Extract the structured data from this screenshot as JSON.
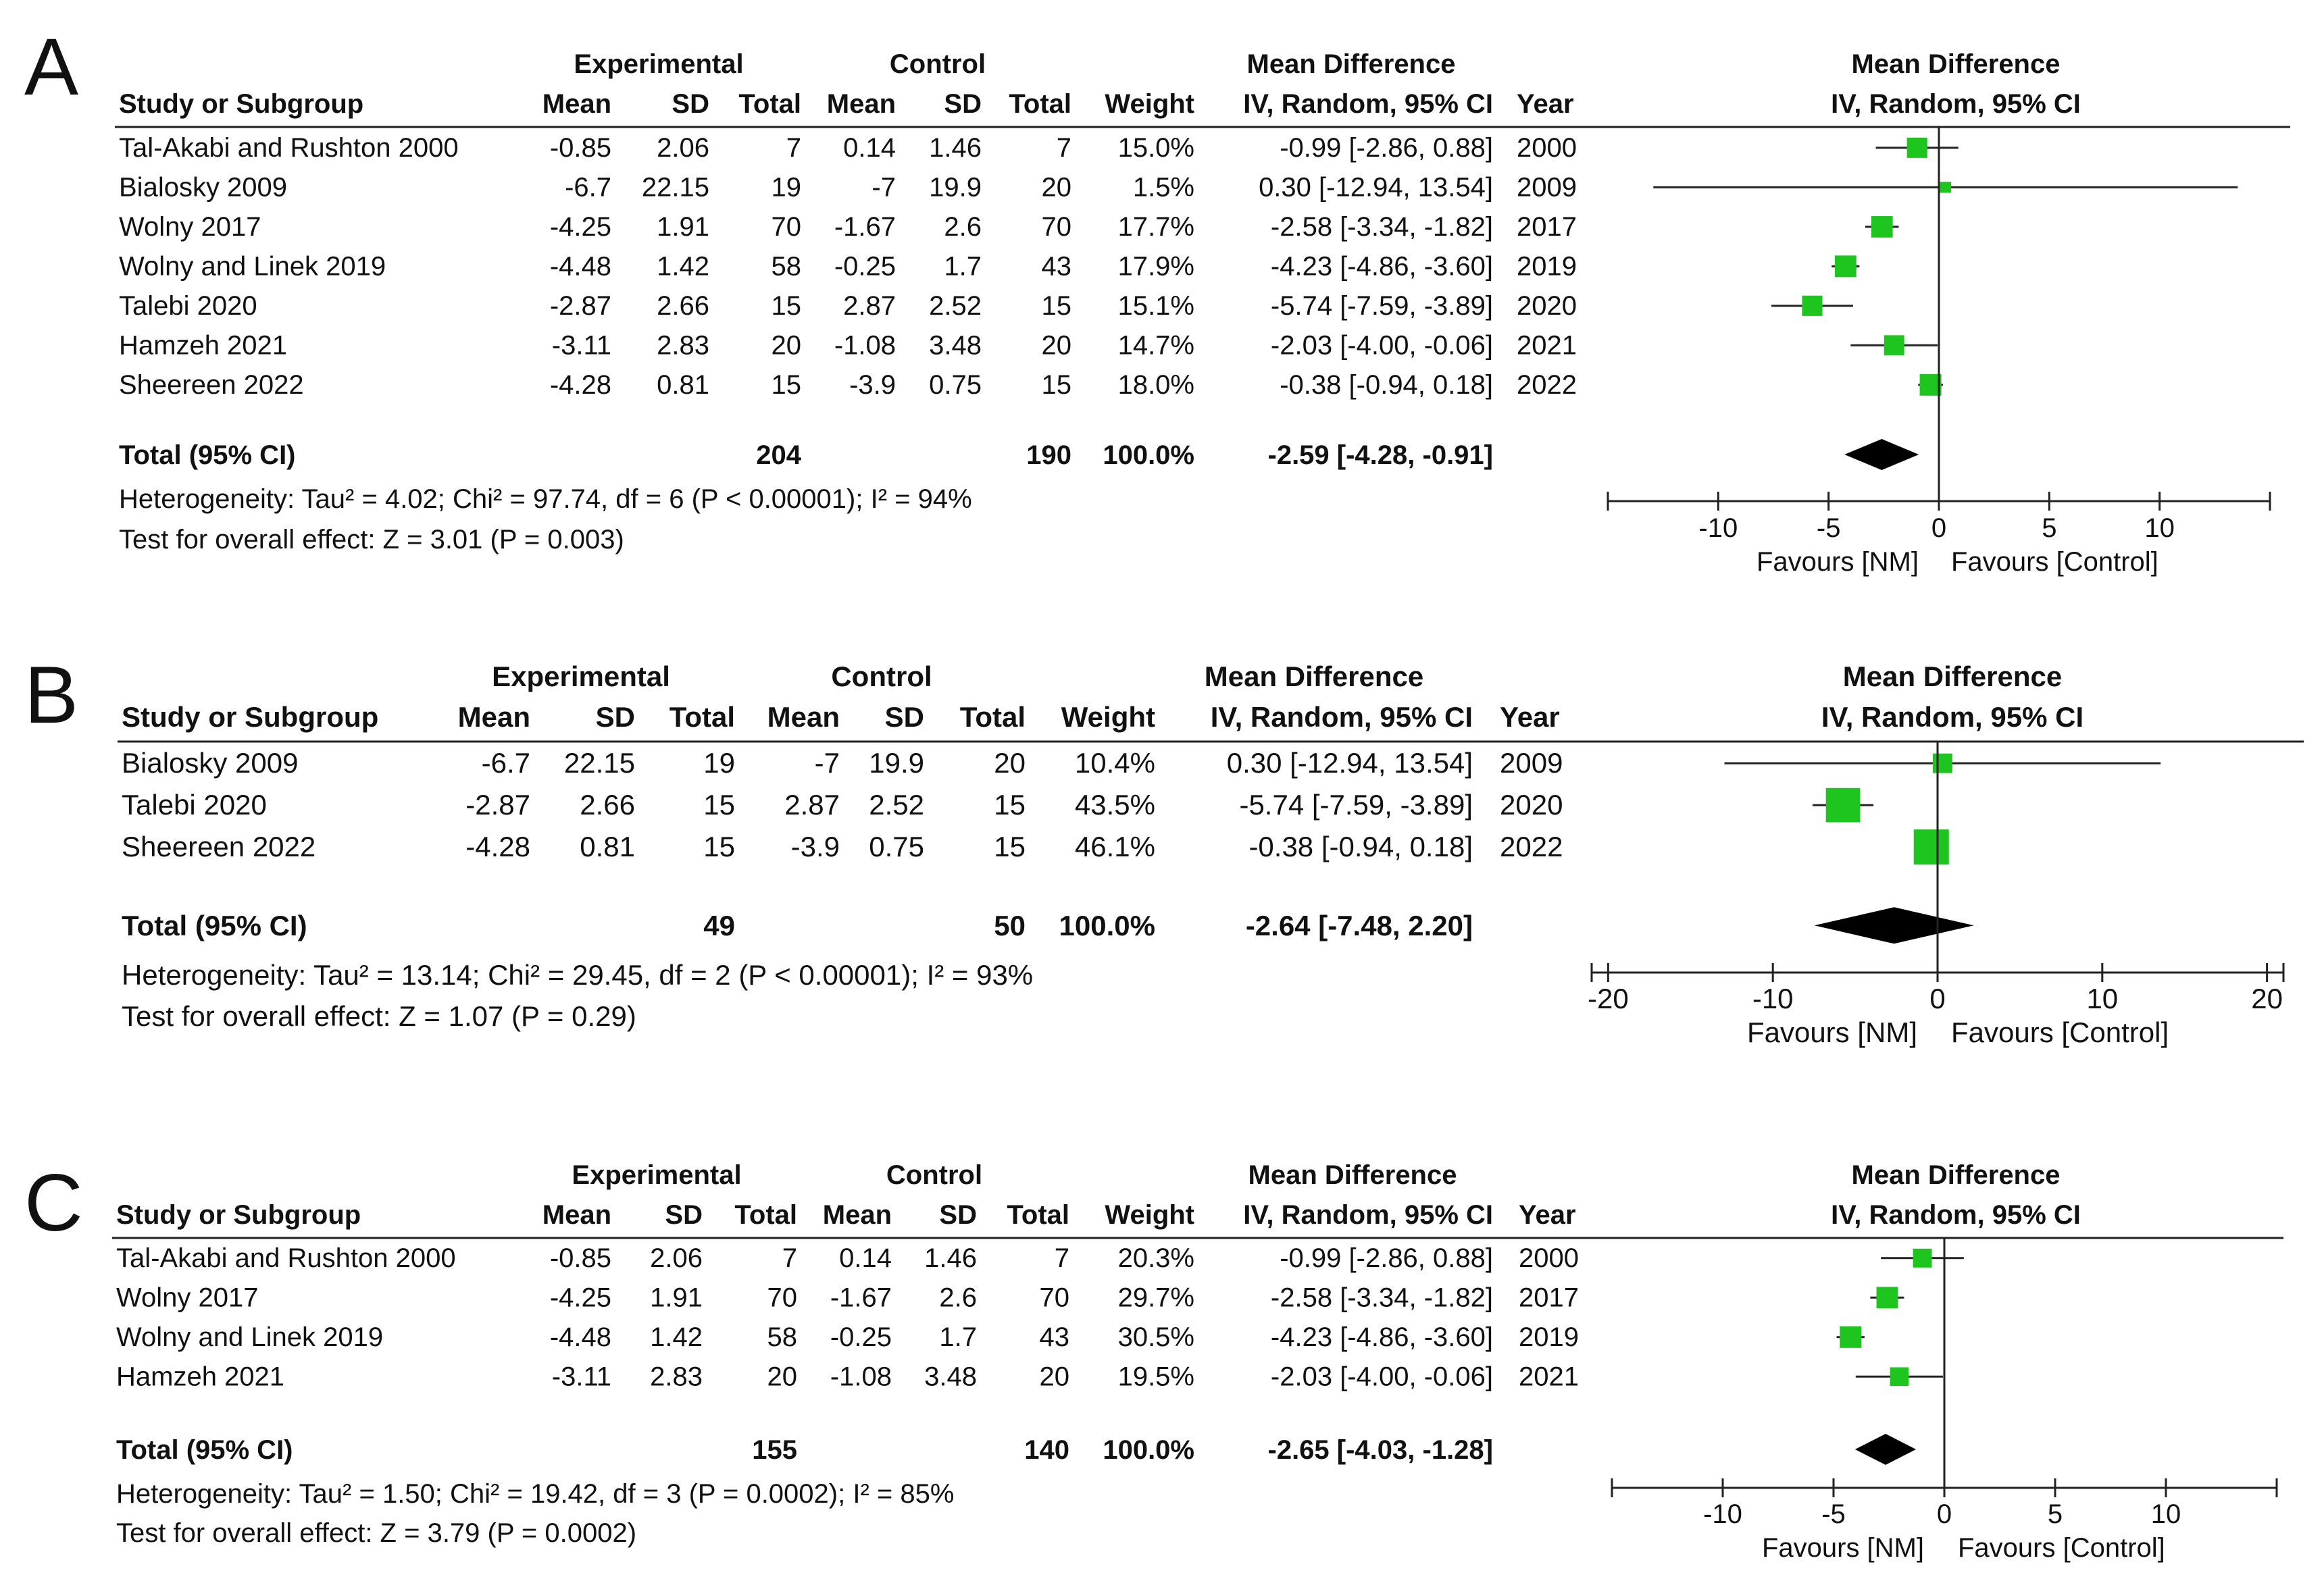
{
  "chart_data": [
    {
      "type": "forest",
      "panel_label": "A",
      "headers": {
        "study": "Study or Subgroup",
        "experimental": "Experimental",
        "control": "Control",
        "mean": "Mean",
        "sd": "SD",
        "total": "Total",
        "weight": "Weight",
        "md_title": "Mean Difference",
        "md_sub": "IV, Random, 95% CI",
        "year": "Year",
        "plot_title": "Mean Difference",
        "plot_sub": "IV, Random, 95% CI"
      },
      "studies": [
        {
          "name": "Tal-Akabi and Rushton 2000",
          "exp_mean": "-0.85",
          "exp_sd": "2.06",
          "exp_total": "7",
          "ctl_mean": "0.14",
          "ctl_sd": "1.46",
          "ctl_total": "7",
          "weight": "15.0%",
          "ci_text": "-0.99 [-2.86, 0.88]",
          "year": "2000",
          "md": -0.99,
          "lo": -2.86,
          "hi": 0.88,
          "w": 15.0
        },
        {
          "name": "Bialosky 2009",
          "exp_mean": "-6.7",
          "exp_sd": "22.15",
          "exp_total": "19",
          "ctl_mean": "-7",
          "ctl_sd": "19.9",
          "ctl_total": "20",
          "weight": "1.5%",
          "ci_text": "0.30 [-12.94, 13.54]",
          "year": "2009",
          "md": 0.3,
          "lo": -12.94,
          "hi": 13.54,
          "w": 1.5
        },
        {
          "name": "Wolny 2017",
          "exp_mean": "-4.25",
          "exp_sd": "1.91",
          "exp_total": "70",
          "ctl_mean": "-1.67",
          "ctl_sd": "2.6",
          "ctl_total": "70",
          "weight": "17.7%",
          "ci_text": "-2.58 [-3.34, -1.82]",
          "year": "2017",
          "md": -2.58,
          "lo": -3.34,
          "hi": -1.82,
          "w": 17.7
        },
        {
          "name": "Wolny and Linek 2019",
          "exp_mean": "-4.48",
          "exp_sd": "1.42",
          "exp_total": "58",
          "ctl_mean": "-0.25",
          "ctl_sd": "1.7",
          "ctl_total": "43",
          "weight": "17.9%",
          "ci_text": "-4.23 [-4.86, -3.60]",
          "year": "2019",
          "md": -4.23,
          "lo": -4.86,
          "hi": -3.6,
          "w": 17.9
        },
        {
          "name": "Talebi 2020",
          "exp_mean": "-2.87",
          "exp_sd": "2.66",
          "exp_total": "15",
          "ctl_mean": "2.87",
          "ctl_sd": "2.52",
          "ctl_total": "15",
          "weight": "15.1%",
          "ci_text": "-5.74 [-7.59, -3.89]",
          "year": "2020",
          "md": -5.74,
          "lo": -7.59,
          "hi": -3.89,
          "w": 15.1
        },
        {
          "name": "Hamzeh 2021",
          "exp_mean": "-3.11",
          "exp_sd": "2.83",
          "exp_total": "20",
          "ctl_mean": "-1.08",
          "ctl_sd": "3.48",
          "ctl_total": "20",
          "weight": "14.7%",
          "ci_text": "-2.03 [-4.00, -0.06]",
          "year": "2021",
          "md": -2.03,
          "lo": -4.0,
          "hi": -0.06,
          "w": 14.7
        },
        {
          "name": "Sheereen 2022",
          "exp_mean": "-4.28",
          "exp_sd": "0.81",
          "exp_total": "15",
          "ctl_mean": "-3.9",
          "ctl_sd": "0.75",
          "ctl_total": "15",
          "weight": "18.0%",
          "ci_text": "-0.38 [-0.94, 0.18]",
          "year": "2022",
          "md": -0.38,
          "lo": -0.94,
          "hi": 0.18,
          "w": 18.0
        }
      ],
      "total": {
        "label": "Total (95% CI)",
        "exp_total": "204",
        "ctl_total": "190",
        "weight": "100.0%",
        "ci_text": "-2.59 [-4.28, -0.91]",
        "md": -2.59,
        "lo": -4.28,
        "hi": -0.91
      },
      "heterogeneity": "Heterogeneity: Tau² = 4.02; Chi² = 97.74, df = 6 (P < 0.00001); I² = 94%",
      "overall_effect": "Test for overall effect: Z = 3.01 (P = 0.003)",
      "axis": {
        "min": -15,
        "max": 15,
        "ticks": [
          -10,
          -5,
          0,
          5,
          10
        ],
        "tick_labels": [
          "-10",
          "-5",
          "0",
          "5",
          "10"
        ]
      },
      "favours_left": "Favours [NM]",
      "favours_right": "Favours [Control]"
    },
    {
      "type": "forest",
      "panel_label": "B",
      "headers": {
        "study": "Study or Subgroup",
        "experimental": "Experimental",
        "control": "Control",
        "mean": "Mean",
        "sd": "SD",
        "total": "Total",
        "weight": "Weight",
        "md_title": "Mean Difference",
        "md_sub": "IV, Random, 95% CI",
        "year": "Year",
        "plot_title": "Mean Difference",
        "plot_sub": "IV, Random, 95% CI"
      },
      "studies": [
        {
          "name": "Bialosky 2009",
          "exp_mean": "-6.7",
          "exp_sd": "22.15",
          "exp_total": "19",
          "ctl_mean": "-7",
          "ctl_sd": "19.9",
          "ctl_total": "20",
          "weight": "10.4%",
          "ci_text": "0.30 [-12.94, 13.54]",
          "year": "2009",
          "md": 0.3,
          "lo": -12.94,
          "hi": 13.54,
          "w": 10.4
        },
        {
          "name": "Talebi 2020",
          "exp_mean": "-2.87",
          "exp_sd": "2.66",
          "exp_total": "15",
          "ctl_mean": "2.87",
          "ctl_sd": "2.52",
          "ctl_total": "15",
          "weight": "43.5%",
          "ci_text": "-5.74 [-7.59, -3.89]",
          "year": "2020",
          "md": -5.74,
          "lo": -7.59,
          "hi": -3.89,
          "w": 43.5
        },
        {
          "name": "Sheereen 2022",
          "exp_mean": "-4.28",
          "exp_sd": "0.81",
          "exp_total": "15",
          "ctl_mean": "-3.9",
          "ctl_sd": "0.75",
          "ctl_total": "15",
          "weight": "46.1%",
          "ci_text": "-0.38 [-0.94, 0.18]",
          "year": "2022",
          "md": -0.38,
          "lo": -0.94,
          "hi": 0.18,
          "w": 46.1
        }
      ],
      "total": {
        "label": "Total (95% CI)",
        "exp_total": "49",
        "ctl_total": "50",
        "weight": "100.0%",
        "ci_text": "-2.64 [-7.48, 2.20]",
        "md": -2.64,
        "lo": -7.48,
        "hi": 2.2
      },
      "heterogeneity": "Heterogeneity: Tau² = 13.14; Chi² = 29.45, df = 2 (P < 0.00001); I² = 93%",
      "overall_effect": "Test for overall effect: Z = 1.07 (P = 0.29)",
      "axis": {
        "min": -21,
        "max": 21,
        "ticks": [
          -20,
          -10,
          0,
          10,
          20
        ],
        "tick_labels": [
          "-20",
          "-10",
          "0",
          "10",
          "20"
        ]
      },
      "favours_left": "Favours [NM]",
      "favours_right": "Favours [Control]"
    },
    {
      "type": "forest",
      "panel_label": "C",
      "headers": {
        "study": "Study or Subgroup",
        "experimental": "Experimental",
        "control": "Control",
        "mean": "Mean",
        "sd": "SD",
        "total": "Total",
        "weight": "Weight",
        "md_title": "Mean Difference",
        "md_sub": "IV, Random, 95% CI",
        "year": "Year",
        "plot_title": "Mean Difference",
        "plot_sub": "IV, Random, 95% CI"
      },
      "studies": [
        {
          "name": "Tal-Akabi and Rushton 2000",
          "exp_mean": "-0.85",
          "exp_sd": "2.06",
          "exp_total": "7",
          "ctl_mean": "0.14",
          "ctl_sd": "1.46",
          "ctl_total": "7",
          "weight": "20.3%",
          "ci_text": "-0.99 [-2.86, 0.88]",
          "year": "2000",
          "md": -0.99,
          "lo": -2.86,
          "hi": 0.88,
          "w": 20.3
        },
        {
          "name": "Wolny 2017",
          "exp_mean": "-4.25",
          "exp_sd": "1.91",
          "exp_total": "70",
          "ctl_mean": "-1.67",
          "ctl_sd": "2.6",
          "ctl_total": "70",
          "weight": "29.7%",
          "ci_text": "-2.58 [-3.34, -1.82]",
          "year": "2017",
          "md": -2.58,
          "lo": -3.34,
          "hi": -1.82,
          "w": 29.7
        },
        {
          "name": "Wolny and Linek 2019",
          "exp_mean": "-4.48",
          "exp_sd": "1.42",
          "exp_total": "58",
          "ctl_mean": "-0.25",
          "ctl_sd": "1.7",
          "ctl_total": "43",
          "weight": "30.5%",
          "ci_text": "-4.23 [-4.86, -3.60]",
          "year": "2019",
          "md": -4.23,
          "lo": -4.86,
          "hi": -3.6,
          "w": 30.5
        },
        {
          "name": "Hamzeh 2021",
          "exp_mean": "-3.11",
          "exp_sd": "2.83",
          "exp_total": "20",
          "ctl_mean": "-1.08",
          "ctl_sd": "3.48",
          "ctl_total": "20",
          "weight": "19.5%",
          "ci_text": "-2.03 [-4.00, -0.06]",
          "year": "2021",
          "md": -2.03,
          "lo": -4.0,
          "hi": -0.06,
          "w": 19.5
        }
      ],
      "total": {
        "label": "Total (95% CI)",
        "exp_total": "155",
        "ctl_total": "140",
        "weight": "100.0%",
        "ci_text": "-2.65 [-4.03, -1.28]",
        "md": -2.65,
        "lo": -4.03,
        "hi": -1.28
      },
      "heterogeneity": "Heterogeneity: Tau² = 1.50; Chi² = 19.42, df = 3 (P = 0.0002); I² = 85%",
      "overall_effect": "Test for overall effect: Z = 3.79 (P = 0.0002)",
      "axis": {
        "min": -15,
        "max": 15,
        "ticks": [
          -10,
          -5,
          0,
          5,
          10
        ],
        "tick_labels": [
          "-10",
          "-5",
          "0",
          "5",
          "10"
        ]
      },
      "favours_left": "Favours [NM]",
      "favours_right": "Favours [Control]"
    }
  ],
  "colors": {
    "marker": "#1fc51f",
    "diamond": "#000000",
    "line": "#222222",
    "text": "#111111"
  }
}
